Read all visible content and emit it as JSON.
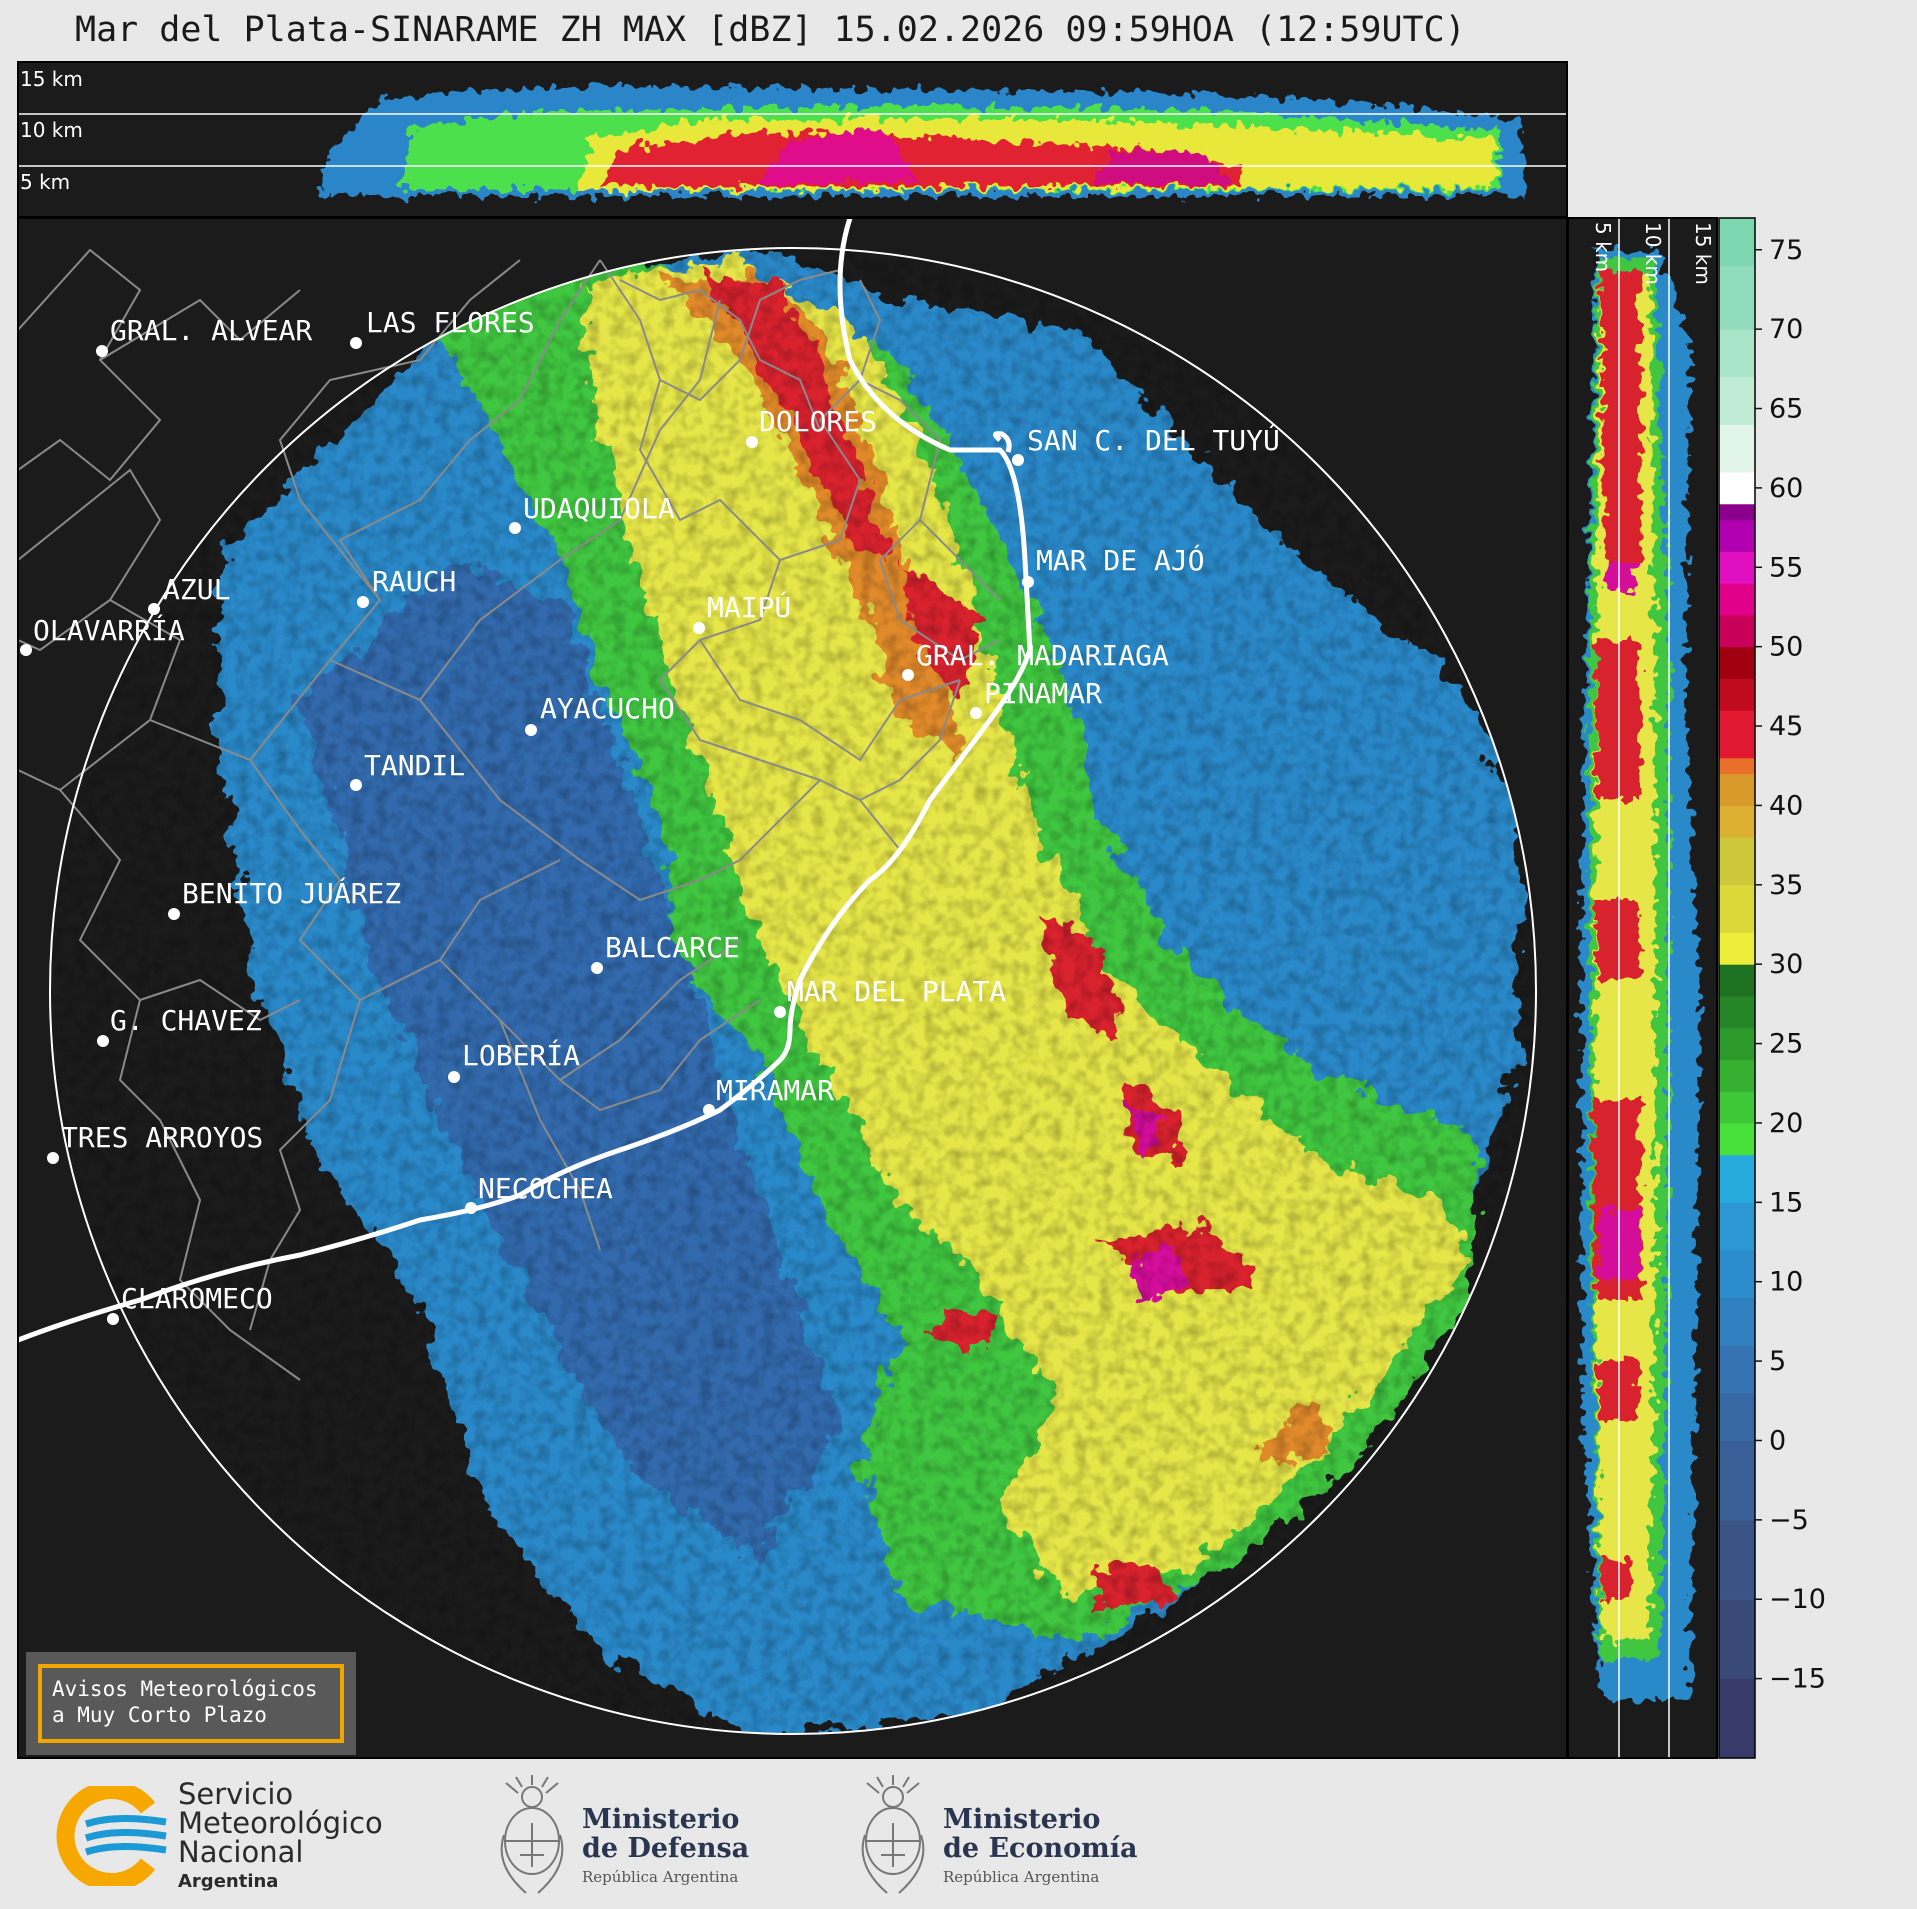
{
  "title": "Mar del Plata-SINARAME ZH MAX [dBZ] 15.02.2026 09:59HOA (12:59UTC)",
  "top_panel_heights": [
    "15 km",
    "10 km",
    "5 km"
  ],
  "side_panel_heights": [
    "5 km",
    "10 km",
    "15 km"
  ],
  "colorbar": {
    "ticks": [
      "75",
      "70",
      "65",
      "60",
      "55",
      "50",
      "45",
      "40",
      "35",
      "30",
      "25",
      "20",
      "15",
      "10",
      "5",
      "0",
      "−5",
      "−10",
      "−15"
    ]
  },
  "cities": [
    {
      "name": "GRAL. ALVEAR"
    },
    {
      "name": "LAS FLORES"
    },
    {
      "name": "DOLORES"
    },
    {
      "name": "SAN C. DEL TUYÚ"
    },
    {
      "name": "UDAQUIOLA"
    },
    {
      "name": "MAR DE AJÓ"
    },
    {
      "name": "AZUL"
    },
    {
      "name": "RAUCH"
    },
    {
      "name": "OLAVARRÍA"
    },
    {
      "name": "MAIPÚ"
    },
    {
      "name": "GRAL. MADARIAGA"
    },
    {
      "name": "PINAMAR"
    },
    {
      "name": "AYACUCHO"
    },
    {
      "name": "TANDIL"
    },
    {
      "name": "BENITO JUÁREZ"
    },
    {
      "name": "BALCARCE"
    },
    {
      "name": "MAR DEL PLATA"
    },
    {
      "name": "G. CHAVEZ"
    },
    {
      "name": "LOBERÍA"
    },
    {
      "name": "MIRAMAR"
    },
    {
      "name": "TRES ARROYOS"
    },
    {
      "name": "NECOCHEA"
    },
    {
      "name": "CLAROMECO"
    }
  ],
  "notice": {
    "line1": "Avisos Meteorológicos",
    "line2": "a Muy Corto Plazo"
  },
  "logos": {
    "smn": {
      "line1": "Servicio",
      "line2": "Meteorológico",
      "line3": "Nacional",
      "line4": "Argentina"
    },
    "defensa": {
      "line1": "Ministerio",
      "line2": "de Defensa",
      "line3": "República Argentina"
    },
    "economia": {
      "line1": "Ministerio",
      "line2": "de Economía",
      "line3": "República Argentina"
    }
  },
  "colors": {
    "background": "#1b1b1b",
    "page": "#e8e8e8",
    "smn_blue": "#1b9ad6",
    "smn_orange": "#f6a800"
  }
}
